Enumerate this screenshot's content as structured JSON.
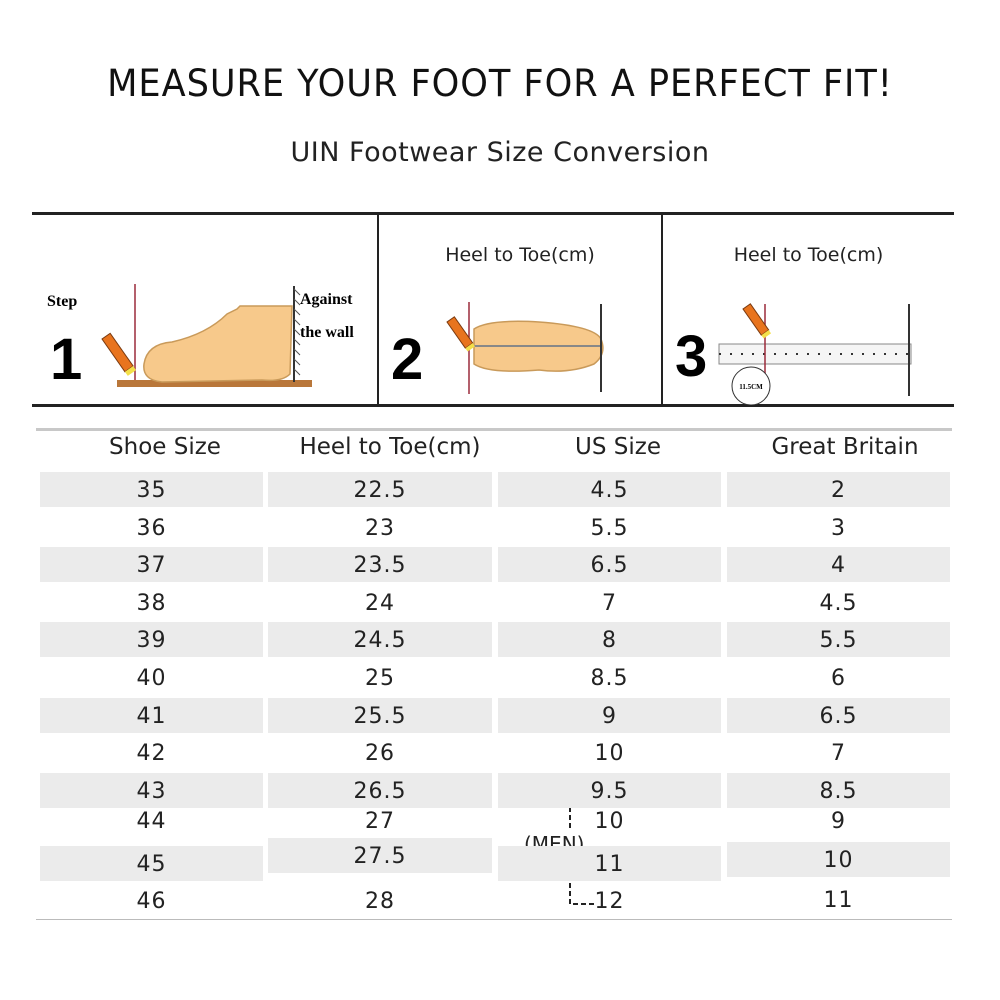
{
  "header": {
    "title": "MEASURE YOUR FOOT FOR A PERFECT FIT!",
    "subtitle": "UIN Footwear Size Conversion"
  },
  "steps": [
    {
      "number": "1",
      "step_label": "Step",
      "note_line1": "Against",
      "note_line2": "the wall"
    },
    {
      "number": "2",
      "label": "Heel to Toe(cm)"
    },
    {
      "number": "3",
      "label": "Heel to Toe(cm)",
      "ruler_mark": "11.5CM"
    }
  ],
  "colors": {
    "row_shade": "#ebebeb",
    "pencil": "#e8741e",
    "foot": "#f7c98b",
    "line": "#222222"
  },
  "table": {
    "columns": [
      "Shoe Size",
      "Heel to Toe(cm)",
      "US Size",
      "Great Britain"
    ],
    "rows": [
      [
        "35",
        "22.5",
        "4.5",
        "2"
      ],
      [
        "36",
        "23",
        "5.5",
        "3"
      ],
      [
        "37",
        "23.5",
        "6.5",
        "4"
      ],
      [
        "38",
        "24",
        "7",
        "4.5"
      ],
      [
        "39",
        "24.5",
        "8",
        "5.5"
      ],
      [
        "40",
        "25",
        "8.5",
        "6"
      ],
      [
        "41",
        "25.5",
        "9",
        "6.5"
      ],
      [
        "42",
        "26",
        "10",
        "7"
      ],
      [
        "43",
        "26.5",
        "9.5",
        "8.5"
      ],
      [
        "44",
        "27",
        "10",
        "9"
      ],
      [
        "45",
        "27.5",
        "11",
        "10"
      ],
      [
        "46",
        "28",
        "12",
        "11"
      ]
    ],
    "men_note": "(MEN)"
  }
}
